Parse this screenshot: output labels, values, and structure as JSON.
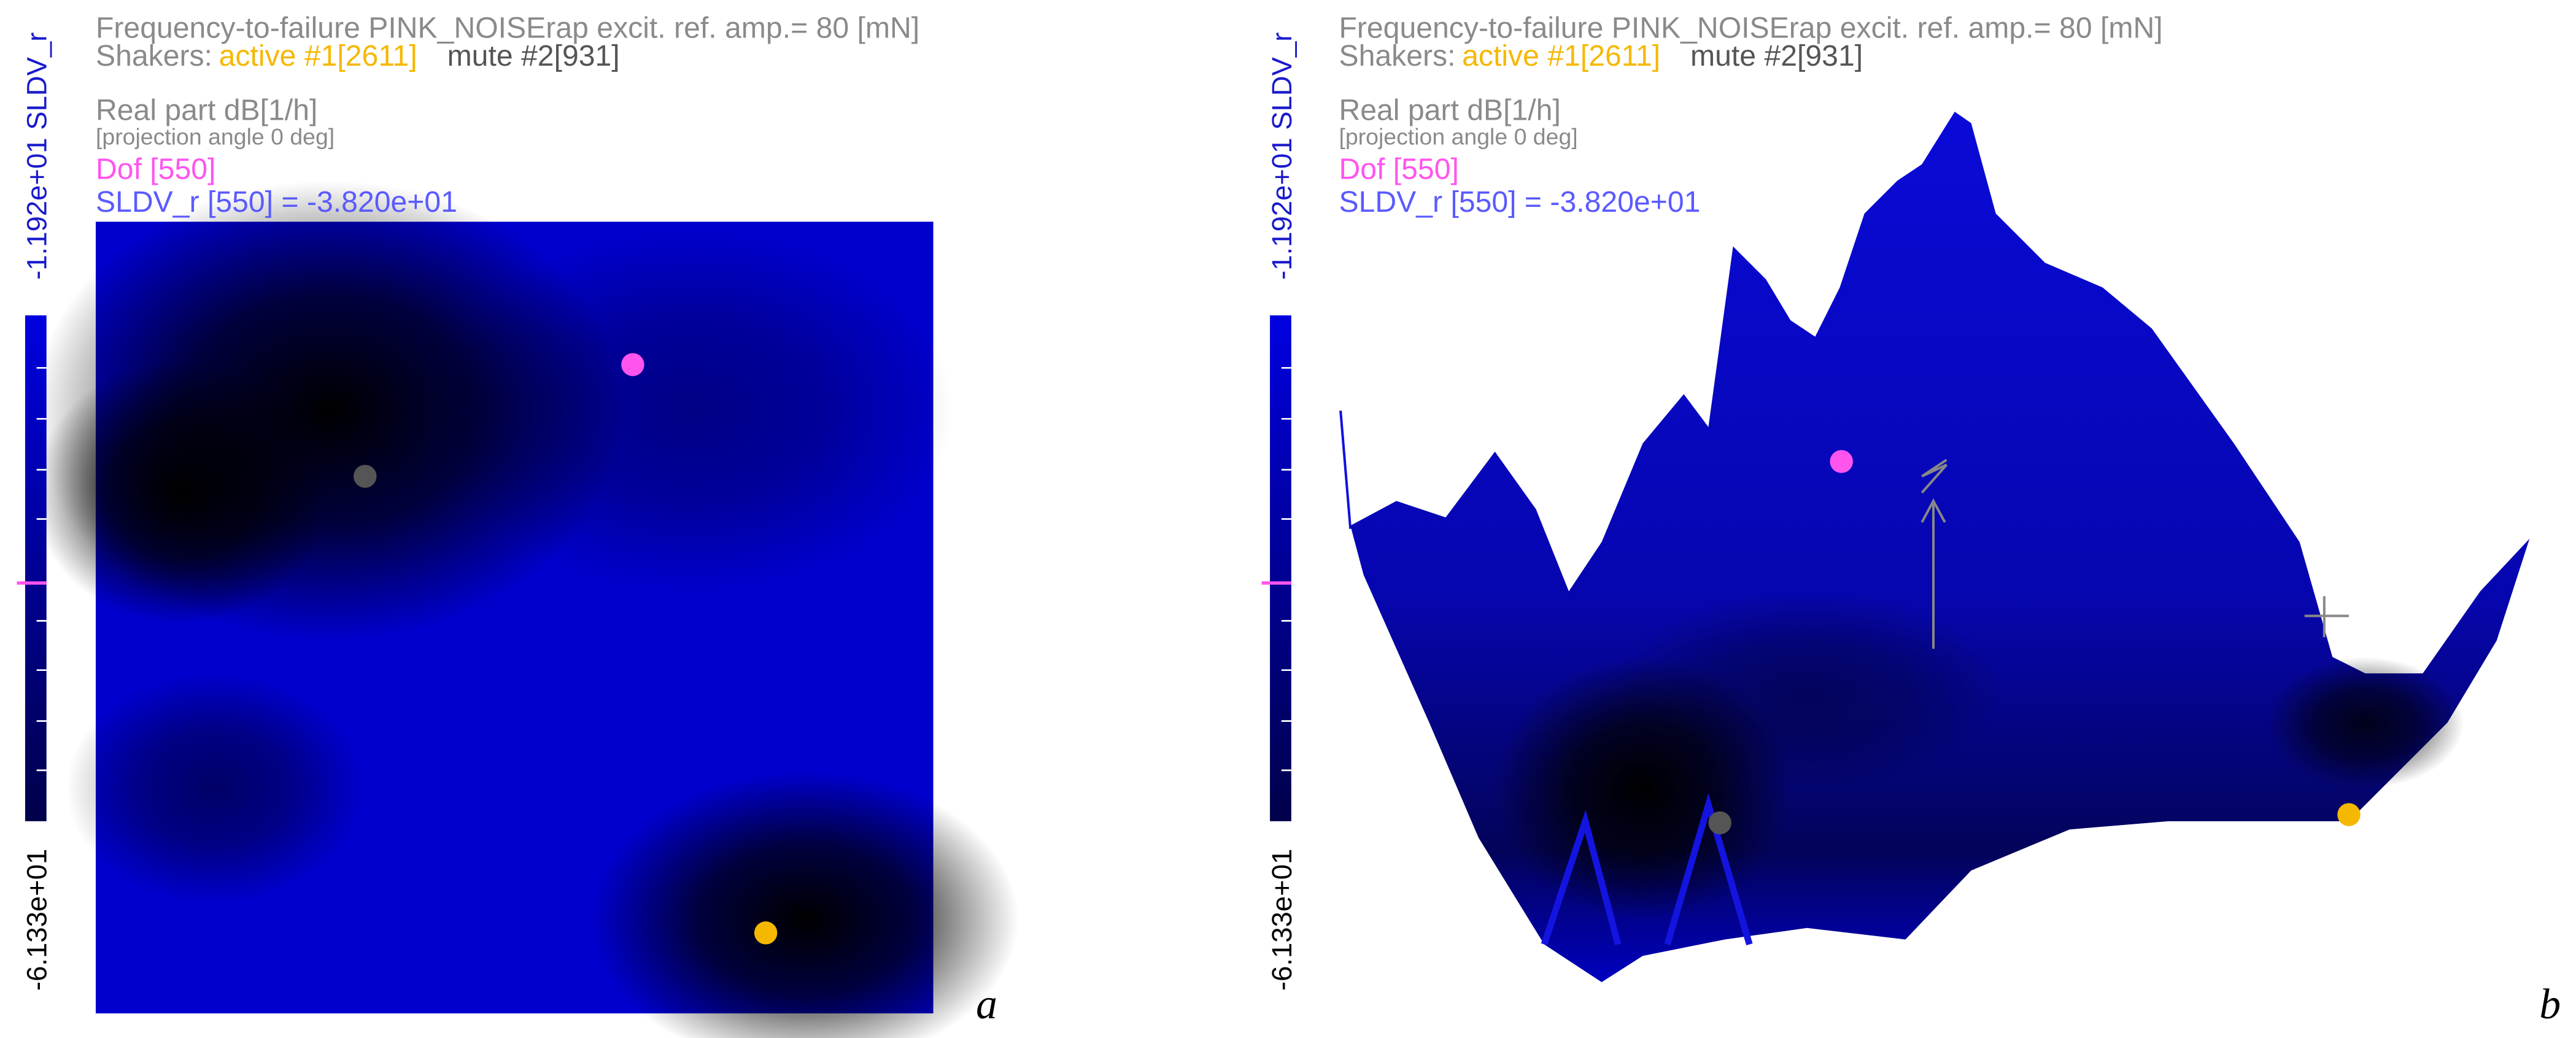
{
  "panels": [
    {
      "title": "Frequency-to-failure PINK_NOISErap excit. ref. amp.= 80 [mN]",
      "shakers_label": "Shakers:",
      "active": "active #1[2611]",
      "mute": "mute #2[931]",
      "quantity": "Real part dB[1/h]",
      "projection": "[projection angle 0 deg]",
      "dof": "Dof [550]",
      "readout": "SLDV_r [550] = -3.820e+01",
      "colorbar_top": "-1.192e+01 SLDV_r",
      "colorbar_bottom": "-6.133e+01",
      "caption": "a"
    },
    {
      "title": "Frequency-to-failure PINK_NOISErap excit. ref. amp.= 80 [mN]",
      "shakers_label": "Shakers:",
      "active": "active #1[2611]",
      "mute": "mute #2[931]",
      "quantity": "Real part dB[1/h]",
      "projection": "[projection angle 0 deg]",
      "dof": "Dof [550]",
      "readout": "SLDV_r [550] = -3.820e+01",
      "colorbar_top": "-1.192e+01 SLDV_r",
      "colorbar_bottom": "-6.133e+01",
      "caption": "b"
    }
  ]
}
